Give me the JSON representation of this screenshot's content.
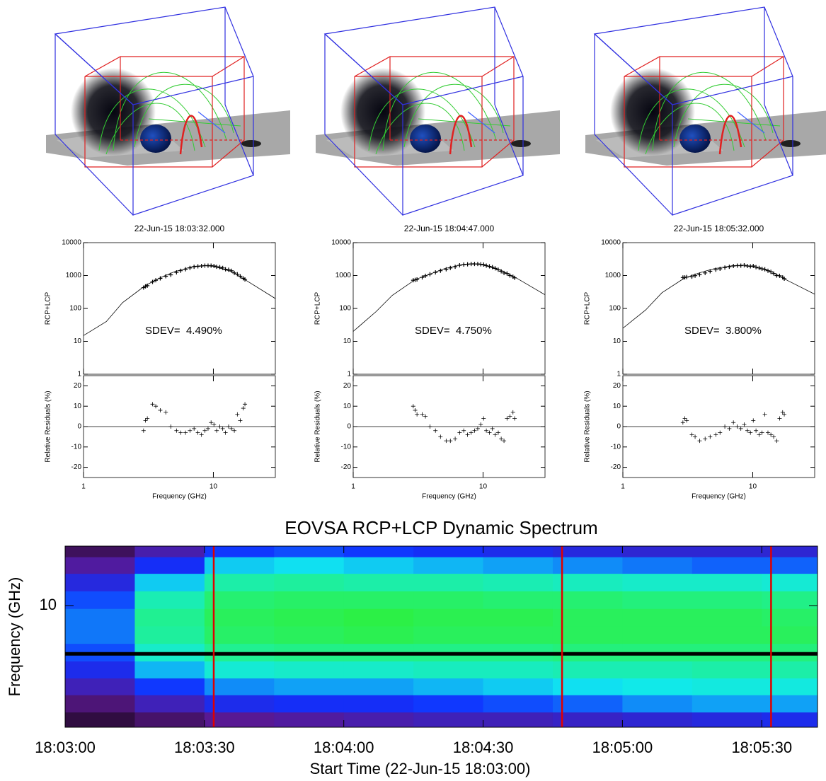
{
  "chart_data": [
    {
      "type": "spectrum",
      "title": "22-Jun-15 18:03:32.000",
      "xlabel": "Frequency (GHz)",
      "log_x": true,
      "xlim": [
        1,
        30
      ],
      "xticks": [
        1,
        10
      ],
      "ylabel": "RCP+LCP",
      "log_y": true,
      "ylim": [
        1,
        10000
      ],
      "yticks": [
        1,
        10,
        100,
        1000,
        10000
      ],
      "annotation": "SDEV=  4.490%",
      "color": "#000000",
      "model": {
        "x": [
          1,
          1.5,
          2,
          3,
          4,
          5,
          7,
          8.5,
          10,
          14,
          18,
          30
        ],
        "values": [
          15,
          40,
          150,
          500,
          900,
          1300,
          1900,
          2000,
          1900,
          1300,
          700,
          200
        ]
      },
      "x": [
        2.9,
        3.0,
        3.1,
        3.4,
        3.6,
        3.9,
        4.3,
        4.7,
        5.2,
        5.6,
        6.1,
        6.6,
        7.1,
        7.6,
        8.1,
        8.6,
        9.1,
        9.6,
        10.1,
        10.6,
        11.2,
        11.8,
        12.4,
        13.1,
        13.8,
        14.5,
        15.3,
        16.1,
        17.0,
        17.5
      ],
      "values": [
        430,
        470,
        490,
        640,
        720,
        820,
        950,
        1050,
        1250,
        1400,
        1550,
        1700,
        1850,
        1900,
        1950,
        2000,
        2000,
        2000,
        1950,
        1850,
        1800,
        1700,
        1550,
        1500,
        1400,
        1200,
        1100,
        950,
        820,
        760
      ],
      "residuals": {
        "ylabel": "Relative Residuals (%)",
        "ylim": [
          -25,
          25
        ],
        "yticks": [
          -20,
          -10,
          0,
          10,
          20
        ],
        "values": [
          -2,
          3,
          4,
          11,
          10,
          8,
          7,
          0,
          -2,
          -3,
          -3,
          -2,
          -1,
          -3,
          -4,
          -2,
          -1,
          2,
          1,
          -2,
          0,
          -1,
          -3,
          0,
          -1,
          -2,
          6,
          3,
          9,
          11
        ]
      }
    },
    {
      "type": "spectrum",
      "title": "22-Jun-15 18:04:47.000",
      "xlabel": "Frequency (GHz)",
      "log_x": true,
      "xlim": [
        1,
        30
      ],
      "xticks": [
        1,
        10
      ],
      "ylabel": "RCP+LCP",
      "log_y": true,
      "ylim": [
        1,
        10000
      ],
      "yticks": [
        1,
        10,
        100,
        1000,
        10000
      ],
      "annotation": "SDEV=  4.750%",
      "color": "#000000",
      "model": {
        "x": [
          1,
          1.5,
          2,
          3,
          4,
          5,
          7,
          8.5,
          10,
          14,
          18,
          30
        ],
        "values": [
          20,
          80,
          250,
          750,
          1150,
          1600,
          2200,
          2300,
          2100,
          1400,
          850,
          260
        ]
      },
      "x": [
        2.9,
        3.0,
        3.1,
        3.4,
        3.6,
        3.9,
        4.3,
        4.7,
        5.2,
        5.6,
        6.1,
        6.6,
        7.1,
        7.6,
        8.1,
        8.6,
        9.1,
        9.6,
        10.1,
        10.6,
        11.2,
        11.8,
        12.4,
        13.1,
        13.8,
        14.5,
        15.3,
        16.1,
        17.0,
        17.5
      ],
      "values": [
        720,
        740,
        760,
        880,
        980,
        1100,
        1250,
        1400,
        1550,
        1700,
        1850,
        2050,
        2150,
        2200,
        2250,
        2250,
        2250,
        2200,
        2150,
        2000,
        1900,
        1800,
        1650,
        1500,
        1350,
        1200,
        1150,
        1000,
        920,
        850
      ],
      "residuals": {
        "ylabel": "Relative Residuals (%)",
        "ylim": [
          -25,
          25
        ],
        "yticks": [
          -20,
          -10,
          0,
          10,
          20
        ],
        "values": [
          10,
          8,
          6,
          6,
          5,
          0,
          -2,
          -5,
          -7,
          -7,
          -6,
          -3,
          -2,
          -4,
          -3,
          -2,
          -1,
          1,
          4,
          -2,
          -3,
          -1,
          -4,
          -3,
          -6,
          -7,
          4,
          5,
          7,
          4
        ]
      }
    },
    {
      "type": "spectrum",
      "title": "22-Jun-15 18:05:32.000",
      "xlabel": "Frequency (GHz)",
      "log_x": true,
      "xlim": [
        1,
        30
      ],
      "xticks": [
        1,
        10
      ],
      "ylabel": "RCP+LCP",
      "log_y": true,
      "ylim": [
        1,
        10000
      ],
      "yticks": [
        1,
        10,
        100,
        1000,
        10000
      ],
      "annotation": "SDEV=  3.800%",
      "color": "#000000",
      "model": {
        "x": [
          1,
          1.5,
          2,
          3,
          4,
          5,
          7,
          8.5,
          10,
          14,
          18,
          30
        ],
        "values": [
          25,
          90,
          300,
          850,
          1250,
          1600,
          2000,
          2050,
          1900,
          1300,
          750,
          270
        ]
      },
      "x": [
        2.9,
        3.0,
        3.1,
        3.4,
        3.6,
        3.9,
        4.3,
        4.7,
        5.2,
        5.6,
        6.1,
        6.6,
        7.1,
        7.6,
        8.1,
        8.6,
        9.1,
        9.6,
        10.1,
        10.6,
        11.2,
        11.8,
        12.4,
        13.1,
        13.8,
        14.5,
        15.3,
        16.1,
        17.0,
        17.5
      ],
      "values": [
        870,
        880,
        900,
        920,
        990,
        1070,
        1200,
        1350,
        1500,
        1600,
        1750,
        1850,
        1950,
        2000,
        2000,
        2050,
        1950,
        1900,
        1950,
        1800,
        1700,
        1600,
        1550,
        1400,
        1300,
        1150,
        1000,
        980,
        880,
        800
      ],
      "residuals": {
        "ylabel": "Relative Residuals (%)",
        "ylim": [
          -25,
          25
        ],
        "yticks": [
          -20,
          -10,
          0,
          10,
          20
        ],
        "values": [
          2,
          4,
          3,
          -4,
          -5,
          -7,
          -6,
          -5,
          -4,
          -3,
          0,
          -1,
          2,
          0,
          -1,
          1,
          -2,
          -3,
          3,
          -2,
          -4,
          -3,
          6,
          -3,
          -4,
          -5,
          -7,
          4,
          7,
          6
        ]
      }
    },
    {
      "type": "heatmap",
      "title": "EOVSA RCP+LCP Dynamic Spectrum",
      "xlabel": "Start Time (22-Jun-15 18:03:00)",
      "ylabel": "Frequency (GHz)",
      "xlim": [
        0,
        162
      ],
      "xticks": [
        {
          "value": 0,
          "label": "18:03:00"
        },
        {
          "value": 30,
          "label": "18:03:30"
        },
        {
          "value": 60,
          "label": "18:04:00"
        },
        {
          "value": 90,
          "label": "18:04:30"
        },
        {
          "value": 120,
          "label": "18:05:00"
        },
        {
          "value": 150,
          "label": "18:05:30"
        }
      ],
      "log_y": true,
      "ylim": [
        3,
        18
      ],
      "yticks": [
        10
      ],
      "x": [
        7.5,
        22.5,
        37.5,
        52.5,
        67.5,
        82.5,
        97.5,
        112.5,
        127.5,
        142.5,
        157.5
      ],
      "y": [
        3.2,
        3.8,
        4.5,
        5.3,
        6.3,
        7.5,
        8.9,
        10.6,
        12.6,
        15.0,
        17.5
      ],
      "values": [
        [
          150,
          300,
          450,
          500,
          550,
          600,
          600,
          650,
          700,
          750,
          800
        ],
        [
          350,
          600,
          800,
          850,
          850,
          900,
          950,
          1000,
          1100,
          1150,
          1150
        ],
        [
          600,
          900,
          1100,
          1150,
          1150,
          1200,
          1250,
          1300,
          1350,
          1400,
          1400
        ],
        [
          800,
          1200,
          1450,
          1500,
          1500,
          1550,
          1550,
          1600,
          1600,
          1650,
          1650
        ],
        [
          950,
          1500,
          1750,
          1800,
          1800,
          1800,
          1800,
          1850,
          1850,
          1850,
          1850
        ],
        [
          1050,
          1700,
          1950,
          2000,
          2050,
          2000,
          2000,
          2000,
          2000,
          2000,
          2000
        ],
        [
          1050,
          1750,
          2000,
          2050,
          2100,
          2050,
          2050,
          2000,
          2000,
          2000,
          1950
        ],
        [
          950,
          1600,
          1900,
          1950,
          1950,
          1950,
          1900,
          1900,
          1850,
          1850,
          1800
        ],
        [
          750,
          1250,
          1650,
          1700,
          1650,
          1650,
          1600,
          1550,
          1500,
          1500,
          1450
        ],
        [
          500,
          850,
          1250,
          1300,
          1250,
          1200,
          1150,
          1100,
          1050,
          1000,
          1000
        ],
        [
          250,
          550,
          900,
          950,
          900,
          850,
          800,
          750,
          700,
          700,
          700
        ]
      ],
      "zlim": [
        0,
        2200
      ],
      "colors": [
        "#1a0818",
        "#5a1890",
        "#1030ff",
        "#10e8f0",
        "#20f090",
        "#30f030"
      ],
      "time_markers": {
        "values": [
          32,
          107,
          152
        ],
        "color": "#e00000"
      },
      "frequency_marker": {
        "value": 6.2,
        "color": "#000000"
      }
    }
  ]
}
